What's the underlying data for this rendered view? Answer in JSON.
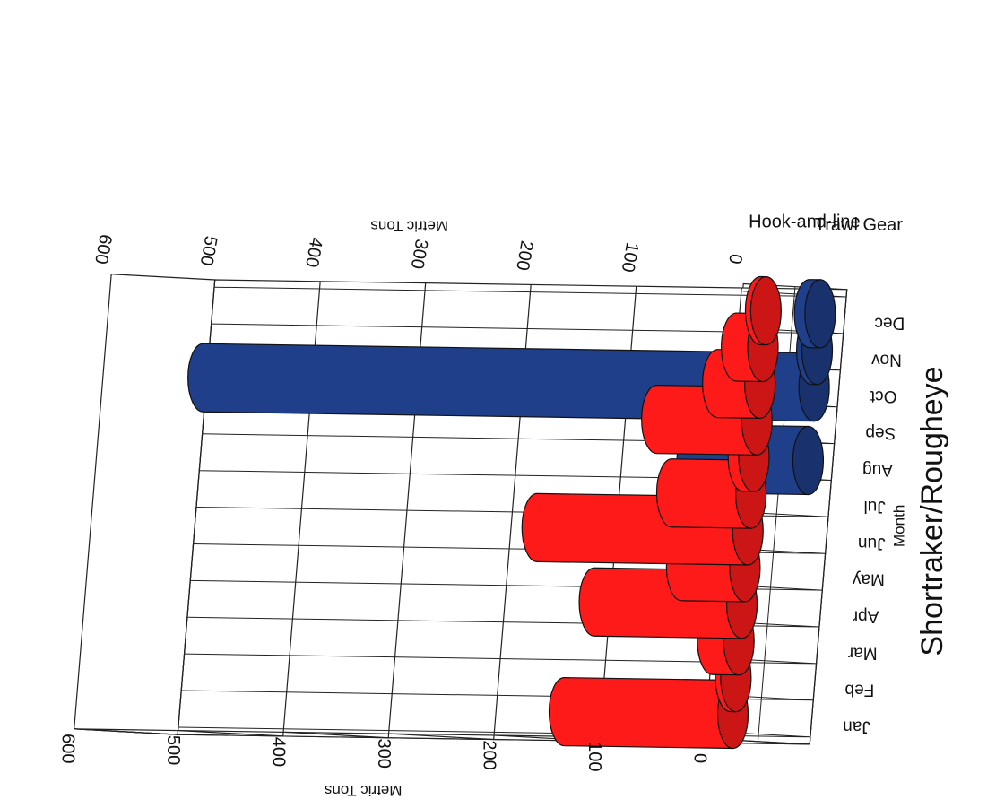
{
  "chart_data": {
    "type": "bar",
    "title": "Shortraker/Rougheye",
    "x_axis_label": "Month",
    "y_axis_label": "Metric Tons",
    "ylim": [
      0,
      600
    ],
    "yticks": [
      0,
      100,
      200,
      300,
      400,
      500,
      600
    ],
    "categories": [
      "Jan",
      "Feb",
      "Mar",
      "Apr",
      "May",
      "Jun",
      "Jul",
      "Aug",
      "Sep",
      "Oct",
      "Nov",
      "Dec"
    ],
    "series": [
      {
        "name": "Hook-and-line",
        "color": "#ff1a1a",
        "values": [
          160,
          5,
          25,
          140,
          60,
          200,
          75,
          10,
          95,
          40,
          25,
          5
        ]
      },
      {
        "name": "Trawl Gear",
        "color": "#1f3f8a",
        "values": [
          0,
          0,
          0,
          0,
          0,
          0,
          0,
          110,
          0,
          580,
          5,
          10
        ]
      }
    ]
  }
}
